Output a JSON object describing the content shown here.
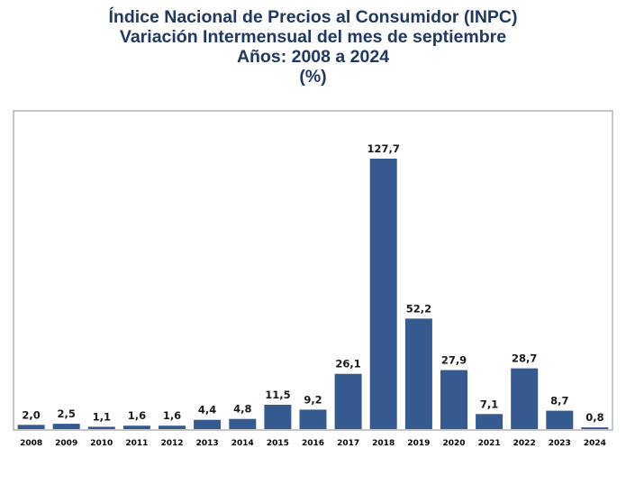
{
  "chart_data": {
    "type": "bar",
    "title": "Índice Nacional de Precios al Consumidor (INPC)",
    "subtitle": [
      "Variación Intermensual del mes de septiembre",
      "Años: 2008 a 2024",
      "(%)"
    ],
    "categories": [
      "2008",
      "2009",
      "2010",
      "2011",
      "2012",
      "2013",
      "2014",
      "2015",
      "2016",
      "2017",
      "2018",
      "2019",
      "2020",
      "2021",
      "2022",
      "2023",
      "2024"
    ],
    "values": [
      2.0,
      2.5,
      1.1,
      1.6,
      1.6,
      4.4,
      4.8,
      11.5,
      9.2,
      26.1,
      127.7,
      52.2,
      27.9,
      7.1,
      28.7,
      8.7,
      0.8
    ],
    "value_labels": [
      "2,0",
      "2,5",
      "1,1",
      "1,6",
      "1,6",
      "4,4",
      "4,8",
      "11,5",
      "9,2",
      "26,1",
      "127,7",
      "52,2",
      "27,9",
      "7,1",
      "28,7",
      "8,7",
      "0,8"
    ],
    "xlabel": "",
    "ylabel": "",
    "grid": false,
    "legend": "none",
    "bar_color": "#345a90",
    "title_color": "#1f3864"
  }
}
